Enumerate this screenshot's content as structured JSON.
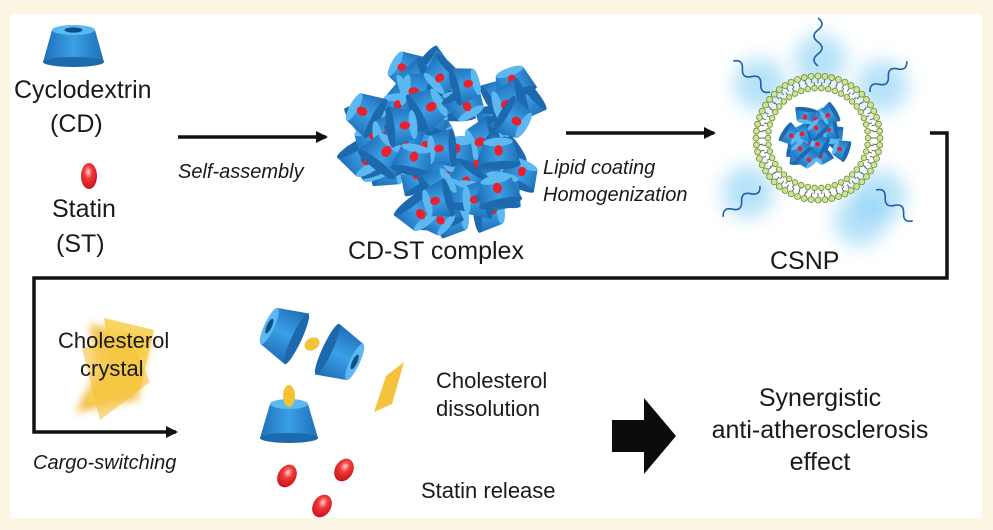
{
  "ingredients": {
    "cd_name": "Cyclodextrin",
    "cd_abbr": "(CD)",
    "st_name": "Statin",
    "st_abbr": "(ST)"
  },
  "steps": {
    "self_assembly": "Self-assembly",
    "lipid_coating": "Lipid coating",
    "homogenization": "Homogenization",
    "cargo_switching": "Cargo-switching"
  },
  "products": {
    "complex": "CD-ST complex",
    "csnp": "CSNP"
  },
  "crystal": {
    "line1": "Cholesterol",
    "line2": "crystal"
  },
  "outcomes": {
    "dissolution_line1": "Cholesterol",
    "dissolution_line2": "dissolution",
    "statin_release": "Statin release"
  },
  "effect": {
    "line1": "Synergistic",
    "line2": "anti-atherosclerosis",
    "line3": "effect"
  },
  "colors": {
    "cyclodextrin": "#2f8fd8",
    "statin": "#e8202a",
    "cholesterol": "#f2c23a",
    "glow": "#6fc6f2",
    "lipid": "#8fae3a",
    "arrow": "#111111"
  },
  "icons": [
    "cyclodextrin-cone-icon",
    "statin-drop-icon",
    "cd-st-complex-icon",
    "csnp-nanoparticle-icon",
    "cholesterol-crystal-icon",
    "block-arrow-icon"
  ]
}
